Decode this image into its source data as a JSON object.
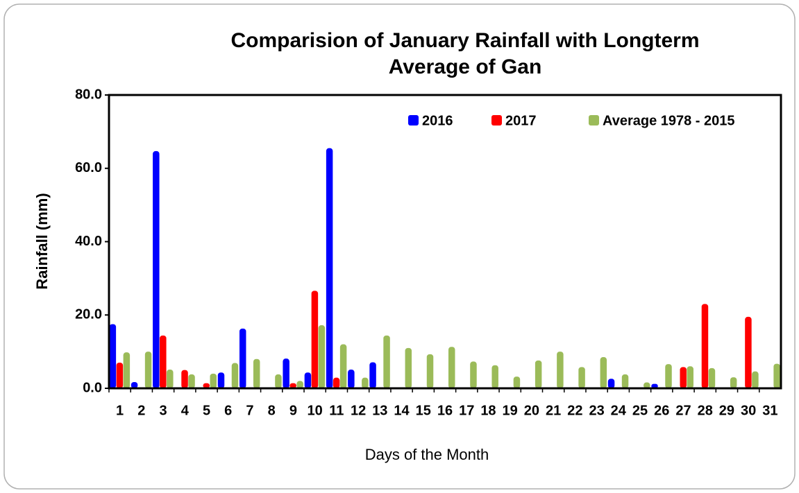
{
  "chart_data": {
    "type": "bar",
    "title": [
      "Comparision of January Rainfall with Longterm",
      "Average of Gan"
    ],
    "x_label": "Days of the Month",
    "y_label": "Rainfall (mm)",
    "categories": [
      "1",
      "2",
      "3",
      "4",
      "5",
      "6",
      "7",
      "8",
      "9",
      "10",
      "11",
      "12",
      "13",
      "14",
      "15",
      "16",
      "17",
      "18",
      "19",
      "20",
      "21",
      "22",
      "23",
      "24",
      "25",
      "26",
      "27",
      "28",
      "29",
      "30",
      "31"
    ],
    "series": [
      {
        "name": "2016",
        "color": "#0000ff",
        "values": [
          17.5,
          1.7,
          64.7,
          0,
          0,
          4.3,
          16.3,
          0,
          8.1,
          4.3,
          65.5,
          5.1,
          7.1,
          0,
          0,
          0,
          0,
          0,
          0,
          0,
          0,
          0,
          0,
          2.6,
          0,
          1.2,
          0,
          0,
          0,
          0,
          0
        ]
      },
      {
        "name": "2017",
        "color": "#ff0000",
        "values": [
          7.0,
          0,
          14.4,
          5.0,
          1.4,
          0,
          0,
          0,
          1.4,
          26.6,
          2.9,
          0,
          0,
          0,
          0,
          0,
          0,
          0,
          0,
          0,
          0,
          0,
          0,
          0,
          0,
          0,
          5.8,
          23.0,
          0,
          19.5,
          0
        ]
      },
      {
        "name": "Average 1978 - 2015",
        "color": "#9bbb59",
        "values": [
          9.8,
          10.0,
          5.1,
          3.8,
          4.0,
          6.9,
          8.0,
          3.8,
          2.0,
          17.2,
          12.0,
          2.9,
          14.4,
          11.0,
          9.3,
          11.3,
          7.3,
          6.3,
          3.2,
          7.6,
          10.0,
          5.8,
          8.5,
          3.8,
          1.6,
          6.6,
          6.0,
          5.5,
          3.0,
          4.6,
          6.7
        ]
      }
    ],
    "ylim": [
      0,
      80
    ],
    "yticks": [
      {
        "value": 0,
        "label": "0.0"
      },
      {
        "value": 20,
        "label": "20.0"
      },
      {
        "value": 40,
        "label": "40.0"
      },
      {
        "value": 60,
        "label": "60.0"
      },
      {
        "value": 80,
        "label": "80.0"
      }
    ],
    "legend": "top-right"
  }
}
